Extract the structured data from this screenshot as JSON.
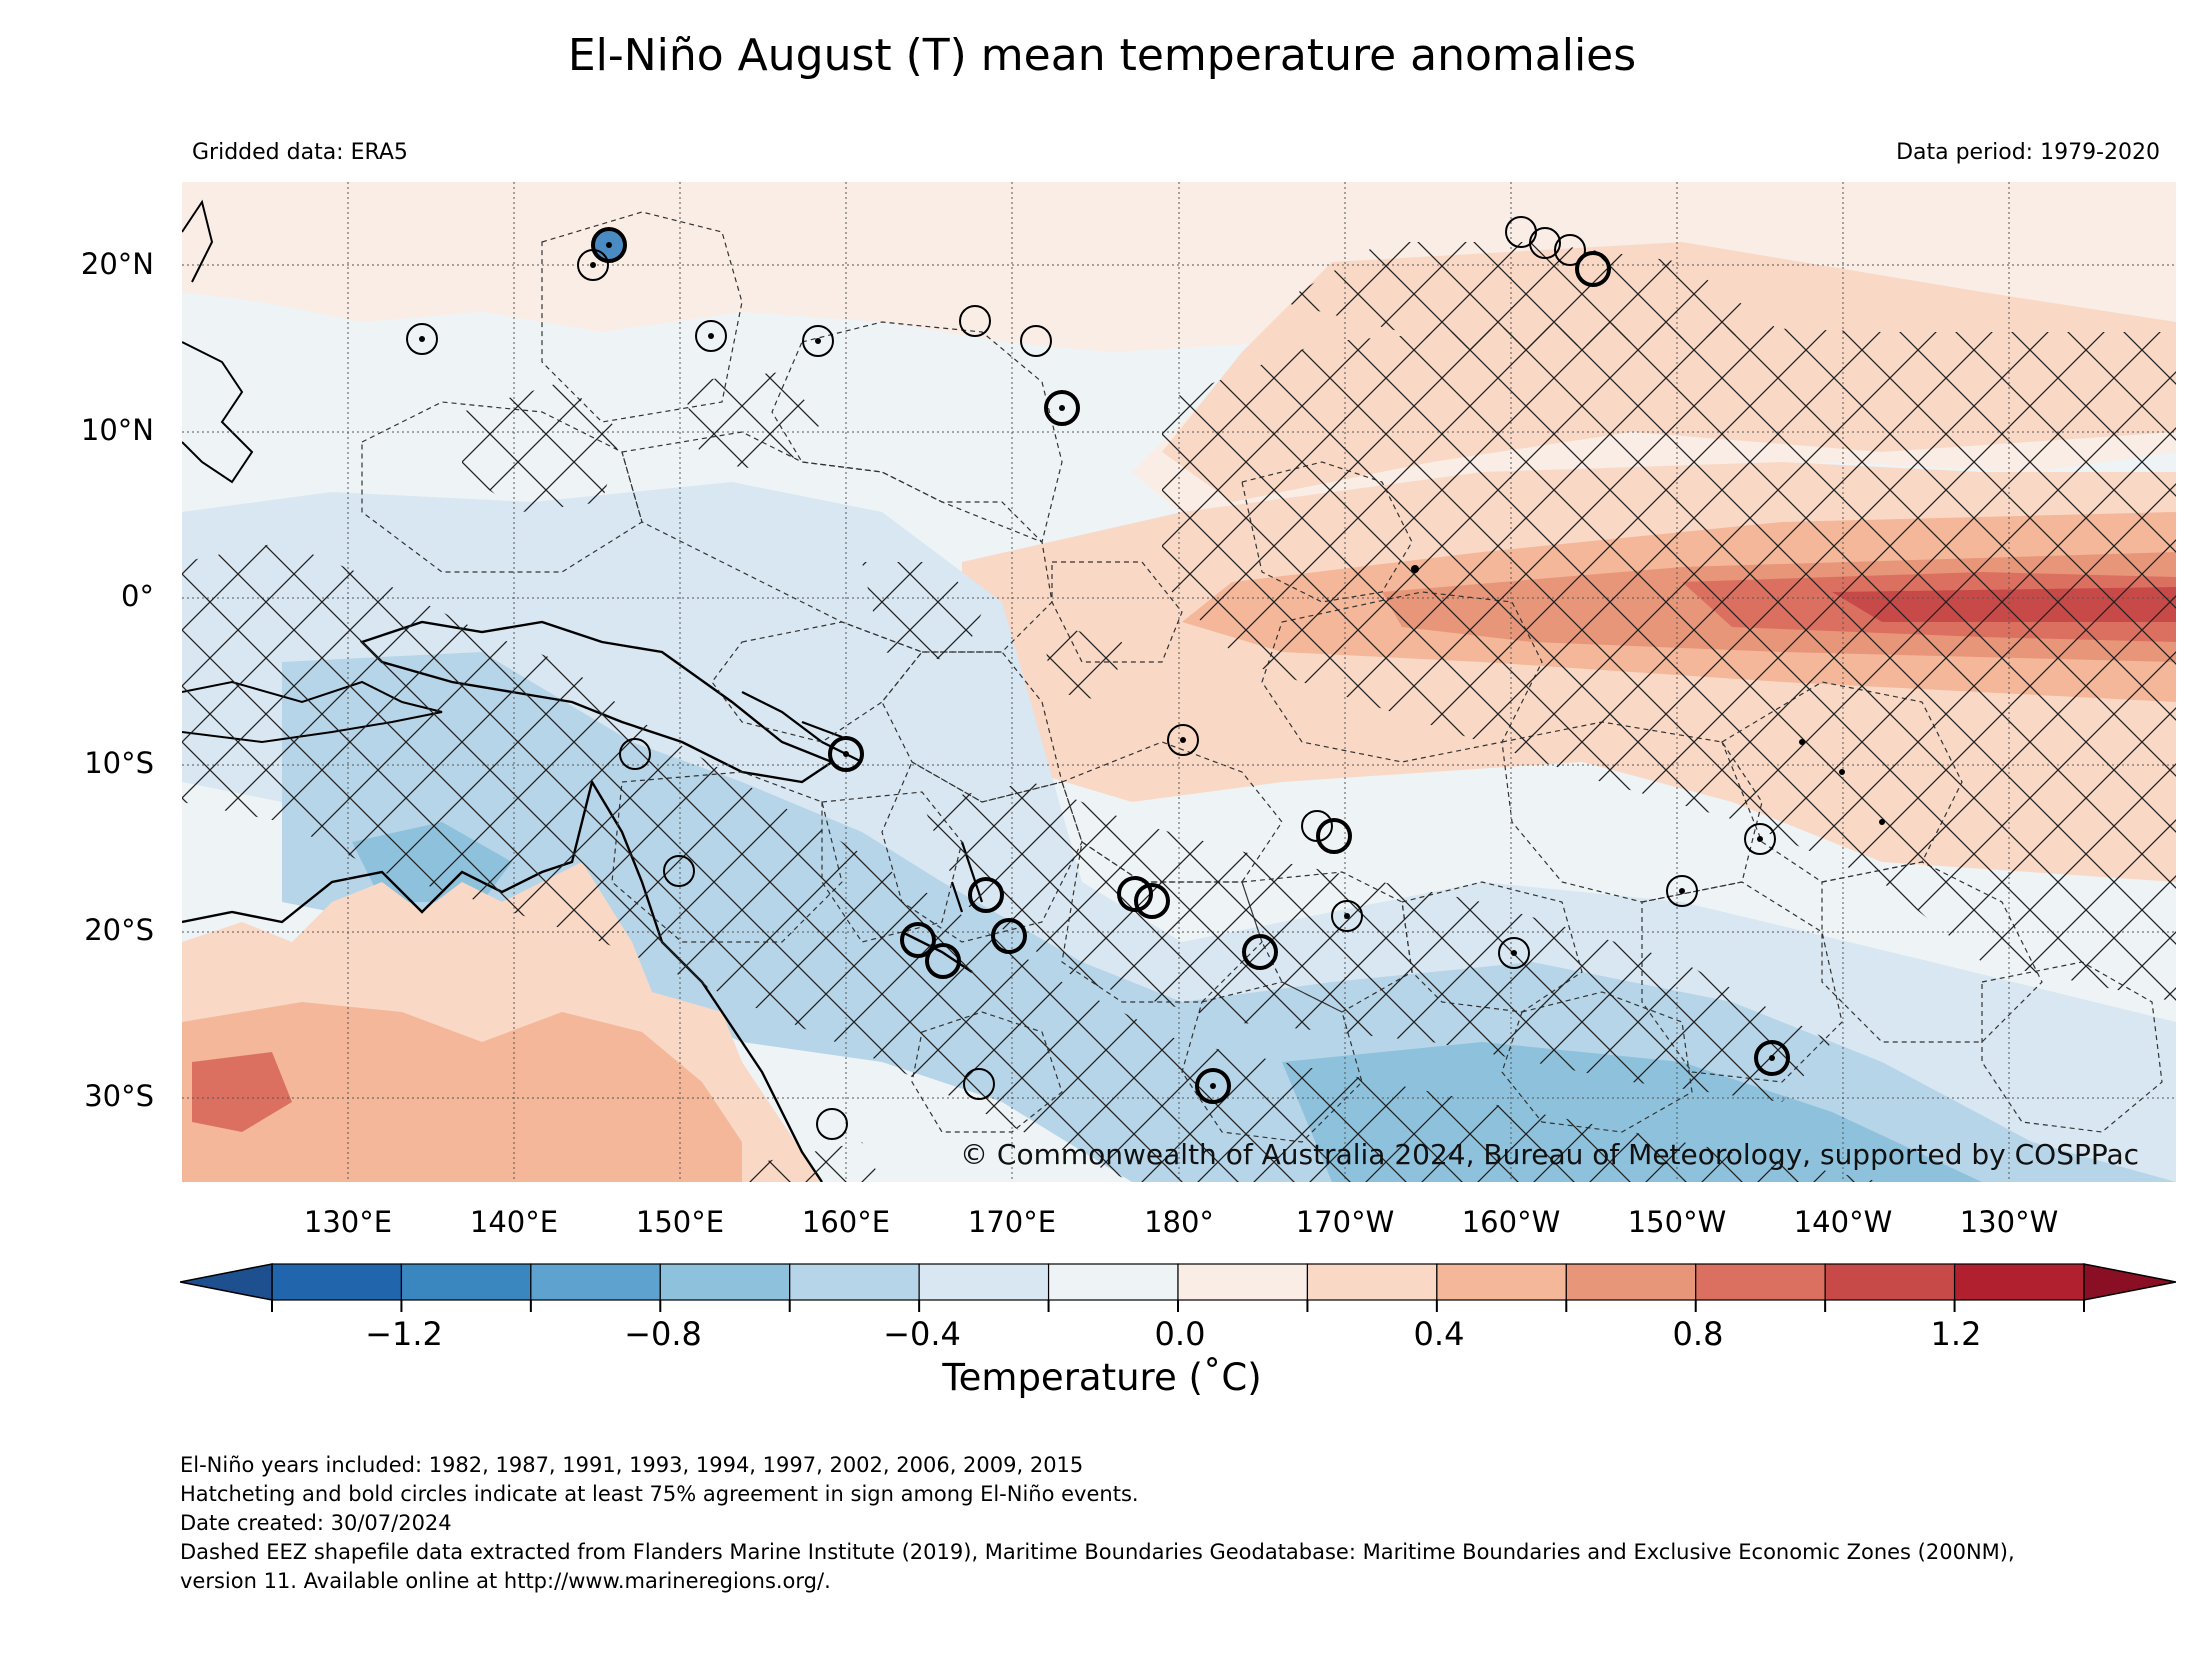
{
  "title": "El-Niño August (T) mean temperature anomalies",
  "gridded_data": "Gridded data: ERA5",
  "data_period": "Data period: 1979-2020",
  "copyright": "© Commonwealth of Australia 2024, Bureau of Meteorology, supported by COSPPac",
  "lat_labels": [
    "20°N",
    "10°N",
    "0°",
    "10°S",
    "20°S",
    "30°S"
  ],
  "lon_labels": [
    "130°E",
    "140°E",
    "150°E",
    "160°E",
    "170°E",
    "180°",
    "170°W",
    "160°W",
    "150°W",
    "140°W",
    "130°W"
  ],
  "colorbar": {
    "label": "Temperature (˚C)",
    "tick_labels": [
      "−1.2",
      "−0.8",
      "−0.4",
      "0.0",
      "0.4",
      "0.8",
      "1.2"
    ],
    "colors": [
      "#2166ac",
      "#3a87c0",
      "#5ea3cf",
      "#8ec1dc",
      "#b7d5e8",
      "#d8e7f1",
      "#eef3f6",
      "#f9ede6",
      "#f9d9c6",
      "#f4b79a",
      "#e8967a",
      "#dc7060",
      "#c74a48",
      "#b0202e"
    ],
    "under_color": "#1e4f8f",
    "over_color": "#8a0f25"
  },
  "footnotes": [
    "El-Niño years included: 1982, 1987, 1991, 1993, 1994, 1997, 2002, 2006, 2009, 2015",
    "Hatcheting and bold circles indicate at least 75% agreement in sign among El-Niño events.",
    "Date created: 30/07/2024",
    "Dashed EEZ shapefile data extracted from Flanders Marine Institute (2019), Maritime Boundaries Geodatabase: Maritime Boundaries and Exclusive Economic Zones (200NM),",
    "version 11. Available online at http://www.marineregions.org/."
  ]
}
